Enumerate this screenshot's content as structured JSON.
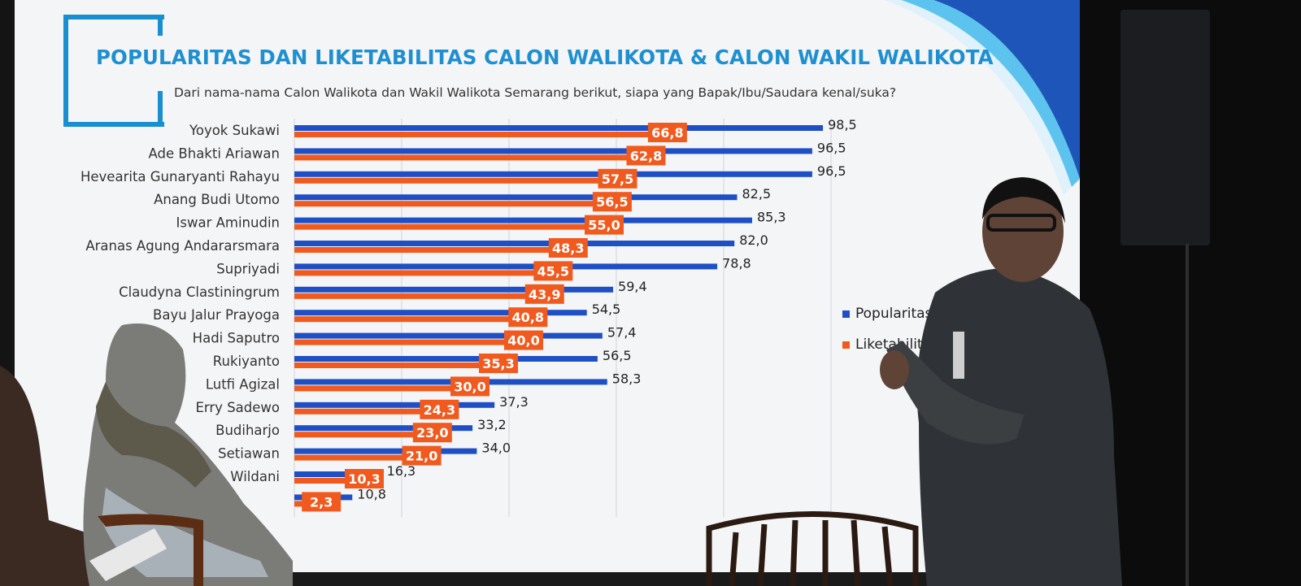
{
  "slide": {
    "title": "POPULARITAS DAN LIKETABILITAS CALON WALIKOTA & CALON WAKIL WALIKOTA",
    "subtitle": "Dari nama-nama Calon Walikota dan Wakil Walikota Semarang berikut, siapa yang Bapak/Ibu/Saudara kenal/suka?"
  },
  "colors": {
    "popularitas": "#1f4fc4",
    "liketabilitas": "#f05a1e",
    "title": "#1f8fd0"
  },
  "chart_data": {
    "type": "bar",
    "orientation": "horizontal",
    "title": "POPULARITAS DAN LIKETABILITAS CALON WALIKOTA & CALON WAKIL WALIKOTA",
    "subtitle": "Dari nama-nama Calon Walikota dan Wakil Walikota Semarang berikut, siapa yang Bapak/Ibu/Saudara kenal/suka?",
    "categories": [
      "Yoyok Sukawi",
      "Ade Bhakti Ariawan",
      "Hevearita Gunaryanti Rahayu",
      "Anang Budi Utomo",
      "Iswar Aminudin",
      "Aranas Agung Andararsmara",
      "Supriyadi",
      "Claudyna Clastiningrum",
      "Bayu Jalur Prayoga",
      "Hadi Saputro",
      "Rukiyanto",
      "Lutfi Agizal",
      "Erry Sadewo",
      "Budiharjo",
      "Setiawan",
      "Wildani",
      ""
    ],
    "series": [
      {
        "name": "Popularitas",
        "values": [
          98.5,
          96.5,
          96.5,
          82.5,
          85.3,
          82.0,
          78.8,
          59.4,
          54.5,
          57.4,
          56.5,
          58.3,
          37.3,
          33.2,
          34.0,
          16.3,
          10.8
        ],
        "labels": [
          "98,5",
          "96,5",
          "96,5",
          "82,5",
          "85,3",
          "82,0",
          "78,8",
          "59,4",
          "54,5",
          "57,4",
          "56,5",
          "58,3",
          "37,3",
          "33,2",
          "34,0",
          "16,3",
          "10,8"
        ]
      },
      {
        "name": "Liketabilitas",
        "values": [
          66.8,
          62.8,
          57.5,
          56.5,
          55.0,
          48.3,
          45.5,
          43.9,
          40.8,
          40.0,
          35.3,
          30.0,
          24.3,
          23.0,
          21.0,
          10.3,
          2.3
        ],
        "labels": [
          "66,8",
          "62,8",
          "57,5",
          "56,5",
          "55,0",
          "48,3",
          "45,5",
          "43,9",
          "40,8",
          "40,0",
          "35,3",
          "30,0",
          "24,3",
          "23,0",
          "21,0",
          "10,3",
          "2,3"
        ]
      }
    ],
    "xlim": [
      0,
      100
    ],
    "grid": true,
    "legend": {
      "position": "right",
      "entries": [
        "Popularitas",
        "Liketabilitas"
      ]
    }
  }
}
